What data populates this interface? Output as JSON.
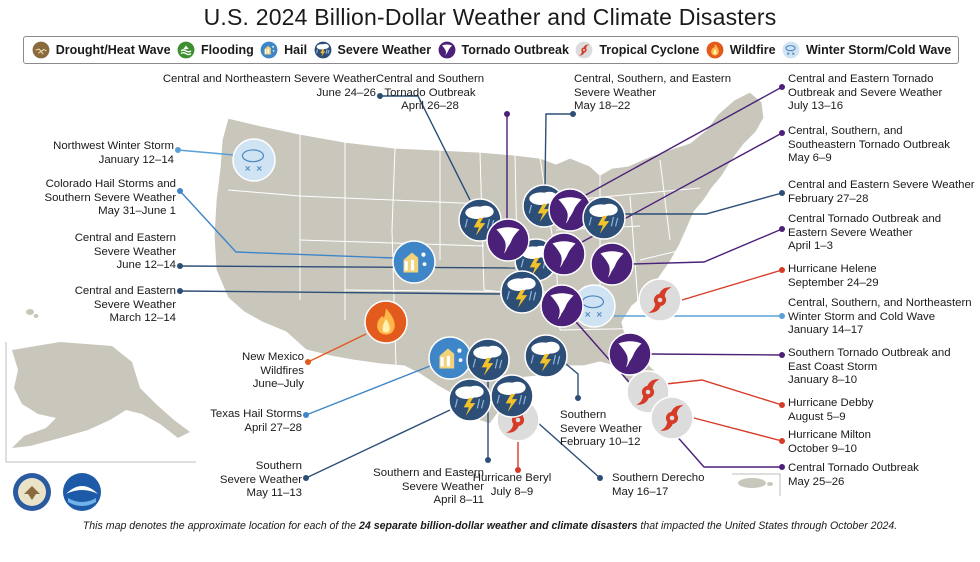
{
  "title": "U.S. 2024 Billion-Dollar Weather and Climate Disasters",
  "colors": {
    "land": "#c9c6bc",
    "state_line": "#ffffff",
    "severe": "#2d4f77",
    "tornado": "#4b2078",
    "cyclone": "#d63b28",
    "cyclone_bg": "#dcdcdc",
    "wildfire": "#e25a1c",
    "hail": "#3f86c8",
    "winter": "#cfe3f3",
    "flooding": "#3e8f2f",
    "drought": "#8a6a3c"
  },
  "legend": [
    {
      "key": "drought",
      "label": "Drought/Heat Wave",
      "icon": "drought-icon"
    },
    {
      "key": "flooding",
      "label": "Flooding",
      "icon": "flooding-icon"
    },
    {
      "key": "hail",
      "label": "Hail",
      "icon": "hail-icon"
    },
    {
      "key": "severe",
      "label": "Severe Weather",
      "icon": "severe-weather-icon"
    },
    {
      "key": "tornado",
      "label": "Tornado Outbreak",
      "icon": "tornado-icon"
    },
    {
      "key": "cyclone",
      "label": "Tropical Cyclone",
      "icon": "cyclone-icon"
    },
    {
      "key": "wildfire",
      "label": "Wildfire",
      "icon": "wildfire-icon"
    },
    {
      "key": "winter",
      "label": "Winter Storm/Cold Wave",
      "icon": "winter-storm-icon"
    }
  ],
  "events": [
    {
      "name": "Northwest Winter Storm",
      "date": "January 12–14",
      "type": "winter"
    },
    {
      "name": "Colorado Hail Storms and Southern Severe Weather",
      "date": "May 31–June 1",
      "type": "hail"
    },
    {
      "name": "Central and Eastern Severe Weather",
      "date": "June 12–14",
      "type": "severe"
    },
    {
      "name": "Central and Eastern Severe Weather",
      "date": "March 12–14",
      "type": "severe"
    },
    {
      "name": "Central and Northeastern Severe Weather",
      "date": "June 24–26",
      "type": "severe"
    },
    {
      "name": "Central and Southern Tornado Outbreak",
      "date": "April 26–28",
      "type": "tornado"
    },
    {
      "name": "Central, Southern, and Eastern Severe Weather",
      "date": "May 18–22",
      "type": "severe"
    },
    {
      "name": "Central and Eastern Tornado Outbreak and Severe Weather",
      "date": "July 13–16",
      "type": "tornado"
    },
    {
      "name": "Central, Southern, and Southeastern Tornado Outbreak",
      "date": "May 6–9",
      "type": "tornado"
    },
    {
      "name": "Central and Eastern Severe Weather",
      "date": "February 27–28",
      "type": "severe"
    },
    {
      "name": "Central Tornado Outbreak and Eastern Severe Weather",
      "date": "April 1–3",
      "type": "tornado"
    },
    {
      "name": "Hurricane Helene",
      "date": "September 24–29",
      "type": "cyclone"
    },
    {
      "name": "Central, Southern, and Northeastern Winter Storm and Cold Wave",
      "date": "January 14–17",
      "type": "winter"
    },
    {
      "name": "Southern Tornado Outbreak and East Coast Storm",
      "date": "January 8–10",
      "type": "tornado"
    },
    {
      "name": "Hurricane Debby",
      "date": "August 5–9",
      "type": "cyclone"
    },
    {
      "name": "Hurricane Milton",
      "date": "October 9–10",
      "type": "cyclone"
    },
    {
      "name": "Central Tornado Outbreak",
      "date": "May 25–26",
      "type": "tornado"
    },
    {
      "name": "New Mexico Wildfires",
      "date": "June–July",
      "type": "wildfire"
    },
    {
      "name": "Texas Hail Storms",
      "date": "April 27–28",
      "type": "hail"
    },
    {
      "name": "Southern Severe Weather",
      "date": "May 11–13",
      "type": "severe"
    },
    {
      "name": "Southern and Eastern Severe Weather",
      "date": "April 8–11",
      "type": "severe"
    },
    {
      "name": "Hurricane Beryl",
      "date": "July 8–9",
      "type": "cyclone"
    },
    {
      "name": "Southern Derecho",
      "date": "May 16–17",
      "type": "severe"
    },
    {
      "name": "Southern Severe Weather",
      "date": "February 10–12",
      "type": "severe"
    }
  ],
  "labels": {
    "nw_winter": [
      "Northwest Winter Storm",
      "January 12–14"
    ],
    "co_hail": [
      "Colorado Hail Storms and",
      "Southern Severe Weather",
      "May 31–June 1"
    ],
    "ce_sw_june": [
      "Central and Eastern",
      "Severe Weather",
      "June 12–14"
    ],
    "ce_sw_march": [
      "Central and Eastern",
      "Severe Weather",
      "March 12–14"
    ],
    "cne_sw": [
      "Central and Northeastern Severe Weather",
      "June 24–26"
    ],
    "cs_tornado": [
      "Central and Southern",
      "Tornado Outbreak",
      "April 26–28"
    ],
    "cse_sw": [
      "Central, Southern, and Eastern",
      "Severe Weather",
      "May 18–22"
    ],
    "ce_tornado_july": [
      "Central and Eastern Tornado",
      "Outbreak and Severe Weather",
      "July 13–16"
    ],
    "css_tornado": [
      "Central, Southern, and",
      "Southeastern Tornado Outbreak",
      "May 6–9"
    ],
    "ce_sw_feb": [
      "Central and Eastern Severe Weather",
      "February 27–28"
    ],
    "ct_es": [
      "Central Tornado Outbreak and",
      "Eastern Severe Weather",
      "April 1–3"
    ],
    "helene": [
      "Hurricane Helene",
      "September 24–29"
    ],
    "csn_winter": [
      "Central, Southern, and Northeastern",
      "Winter Storm and Cold Wave",
      "January 14–17"
    ],
    "st_ecs": [
      "Southern Tornado Outbreak and",
      "East Coast Storm",
      "January 8–10"
    ],
    "debby": [
      "Hurricane Debby",
      "August 5–9"
    ],
    "milton": [
      "Hurricane Milton",
      "October 9–10"
    ],
    "ct_may": [
      "Central Tornado Outbreak",
      "May 25–26"
    ],
    "nm_fire": [
      "New Mexico",
      "Wildfires",
      "June–July"
    ],
    "tx_hail": [
      "Texas Hail Storms",
      "April 27–28"
    ],
    "s_sw_may": [
      "Southern",
      "Severe Weather",
      "May 11–13"
    ],
    "se_sw": [
      "Southern and Eastern",
      "Severe Weather",
      "April 8–11"
    ],
    "beryl": [
      "Hurricane Beryl",
      "July 8–9"
    ],
    "derecho": [
      "Southern Derecho",
      "May 16–17"
    ],
    "s_sw_feb": [
      "Southern",
      "Severe Weather",
      "February 10–12"
    ]
  },
  "footnote": {
    "pre": "This map denotes the approximate location for each of the ",
    "bold": "24 separate billion-dollar weather and climate disasters",
    "post": " that impacted the United States through October 2024."
  },
  "seals": {
    "doc": "DOC seal",
    "noaa": "NOAA"
  }
}
